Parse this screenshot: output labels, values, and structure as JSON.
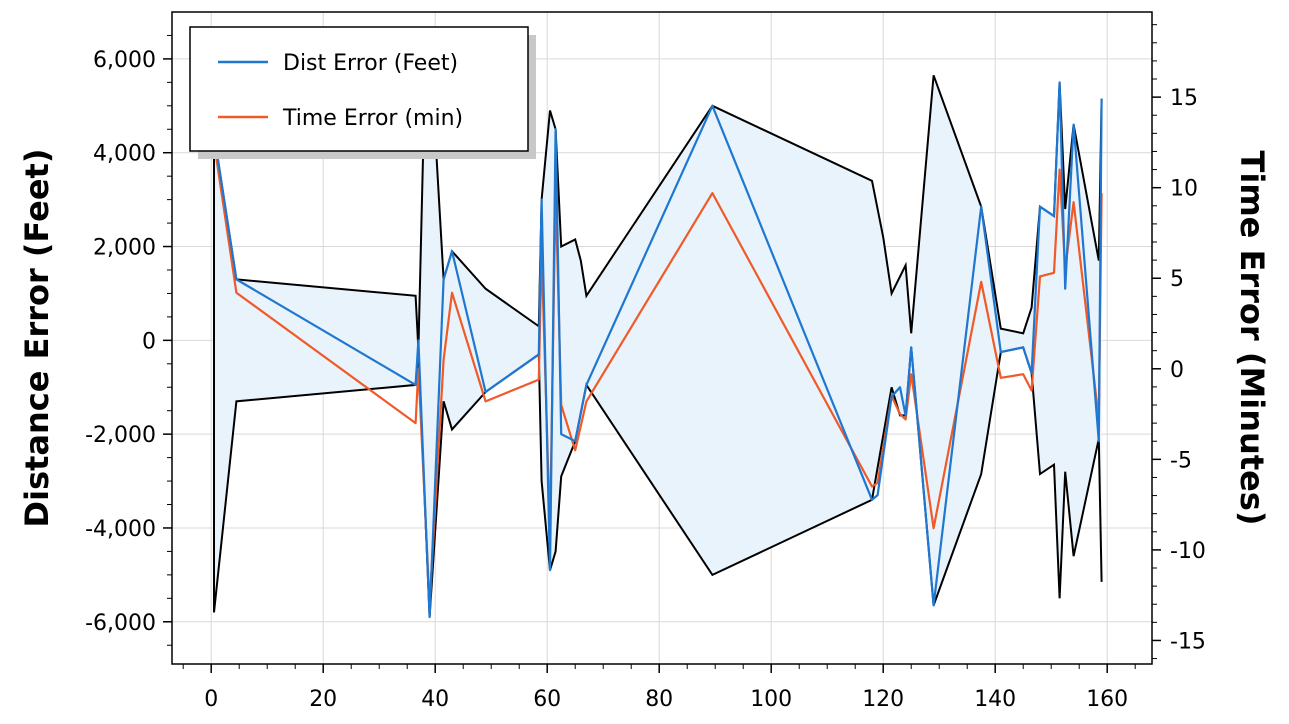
{
  "chart_data": {
    "type": "line",
    "title": "",
    "xlabel": "",
    "ylabel": "Distance Error (Feet)",
    "y2label": "Time Error (Minutes)",
    "xlim": [
      -7,
      168
    ],
    "ylim": [
      -6900,
      7000
    ],
    "y2lim": [
      -16.3,
      19.7
    ],
    "grid": true,
    "legend_position": "top-left",
    "x_ticks": [
      0,
      20,
      40,
      60,
      80,
      100,
      120,
      140,
      160
    ],
    "x_tick_labels": [
      "0",
      "20",
      "40",
      "60",
      "80",
      "100",
      "120",
      "140",
      "160"
    ],
    "y_ticks": [
      6000,
      4000,
      2000,
      0,
      -2000,
      -4000,
      -6000
    ],
    "y_tick_labels": [
      "6,000",
      "4,000",
      "2,000",
      "0",
      "-2,000",
      "-4,000",
      "-6,000"
    ],
    "y2_ticks": [
      15,
      10,
      5,
      0,
      -5,
      -10,
      -15
    ],
    "y2_tick_labels": [
      "15",
      "10",
      "5",
      "0",
      "-5",
      "-10",
      "-15"
    ],
    "colors": {
      "dist": "#1f77d0",
      "time": "#f05a28",
      "band_fill": "#e9f3fb",
      "band_stroke": "#000000",
      "grid": "#d9d9d9"
    },
    "series": [
      {
        "name": "Dist Error (Feet)",
        "axis": "left",
        "x": [
          0.5,
          4.5,
          36.5,
          37.0,
          39.0,
          41.5,
          43.0,
          49.0,
          58.5,
          59.0,
          60.5,
          61.5,
          62.5,
          65.0,
          67.0,
          89.5,
          118.0,
          119.0,
          121.5,
          123.0,
          124.0,
          125.0,
          129.0,
          137.5,
          141.0,
          145.0,
          146.5,
          148.0,
          150.5,
          151.5,
          152.5,
          154.0,
          158.5,
          159.0
        ],
        "y": [
          4400,
          1300,
          -950,
          0,
          -5900,
          1300,
          1900,
          -1100,
          -300,
          3000,
          -4900,
          4500,
          -2000,
          -2150,
          -950,
          5000,
          -3400,
          -3300,
          -1200,
          -1000,
          -1600,
          -150,
          -5650,
          2850,
          -250,
          -150,
          -700,
          2850,
          2650,
          5500,
          1100,
          4600,
          -2150,
          5150
        ]
      },
      {
        "name": "Time Error (min)",
        "axis": "right",
        "x": [
          0.5,
          4.5,
          36.5,
          37.0,
          39.0,
          41.5,
          43.0,
          49.0,
          58.5,
          59.0,
          60.5,
          61.5,
          62.5,
          65.0,
          67.0,
          89.5,
          118.0,
          119.0,
          121.5,
          123.0,
          124.0,
          125.0,
          129.0,
          137.5,
          141.0,
          145.0,
          146.5,
          148.0,
          150.5,
          151.5,
          152.5,
          154.0,
          158.5,
          159.0
        ],
        "y": [
          12.5,
          4.2,
          -3,
          0,
          -13,
          0.5,
          4.2,
          -1.8,
          -0.6,
          6.5,
          -9,
          10,
          -2,
          -4.5,
          -1.8,
          9.7,
          -6.5,
          -6.3,
          -1.5,
          -2.5,
          -2.8,
          -0.3,
          -8.8,
          4.8,
          -0.5,
          -0.3,
          -1.2,
          5.1,
          5.3,
          11,
          5.5,
          9.2,
          -2.8,
          9.7
        ]
      },
      {
        "name": "",
        "kind": "band-upper",
        "axis": "left",
        "x": [
          0.5,
          4.5,
          36.5,
          37.0,
          38.0,
          39.0,
          40.0,
          41.5,
          43.0,
          49.0,
          58.5,
          59.0,
          60.5,
          61.5,
          62.5,
          65.0,
          66.0,
          67.0,
          89.5,
          118.0,
          120.0,
          121.5,
          124.0,
          125.0,
          129.0,
          137.5,
          141.0,
          145.0,
          146.5,
          148.0,
          150.5,
          151.5,
          152.5,
          154.0,
          158.5,
          159.0
        ],
        "y": [
          4400,
          1300,
          950,
          -200,
          4800,
          4900,
          4400,
          1300,
          1900,
          1100,
          300,
          3000,
          4900,
          4500,
          2000,
          2150,
          1700,
          950,
          5000,
          3400,
          2200,
          1000,
          1600,
          150,
          5650,
          2850,
          250,
          150,
          700,
          2850,
          2650,
          5500,
          2800,
          4600,
          1700,
          5150
        ]
      },
      {
        "name": "",
        "kind": "band-lower",
        "axis": "left",
        "x": [
          0.5,
          4.5,
          36.5,
          37.0,
          39.0,
          41.5,
          43.0,
          49.0,
          58.5,
          59.0,
          60.5,
          61.5,
          62.5,
          65.0,
          67.0,
          89.5,
          118.0,
          121.5,
          123.0,
          124.0,
          125.0,
          129.0,
          137.5,
          141.0,
          145.0,
          146.5,
          148.0,
          150.5,
          151.5,
          152.5,
          154.0,
          158.5,
          159.0
        ],
        "y": [
          -5800,
          -1300,
          -950,
          -200,
          -5900,
          -1300,
          -1900,
          -1100,
          -300,
          -3000,
          -4900,
          -4500,
          -2900,
          -2150,
          -950,
          -5000,
          -3400,
          -1000,
          -1600,
          -1600,
          -150,
          -5650,
          -2850,
          -250,
          -150,
          -700,
          -2850,
          -2650,
          -5500,
          -2800,
          -4600,
          -2100,
          -5150
        ]
      }
    ]
  }
}
